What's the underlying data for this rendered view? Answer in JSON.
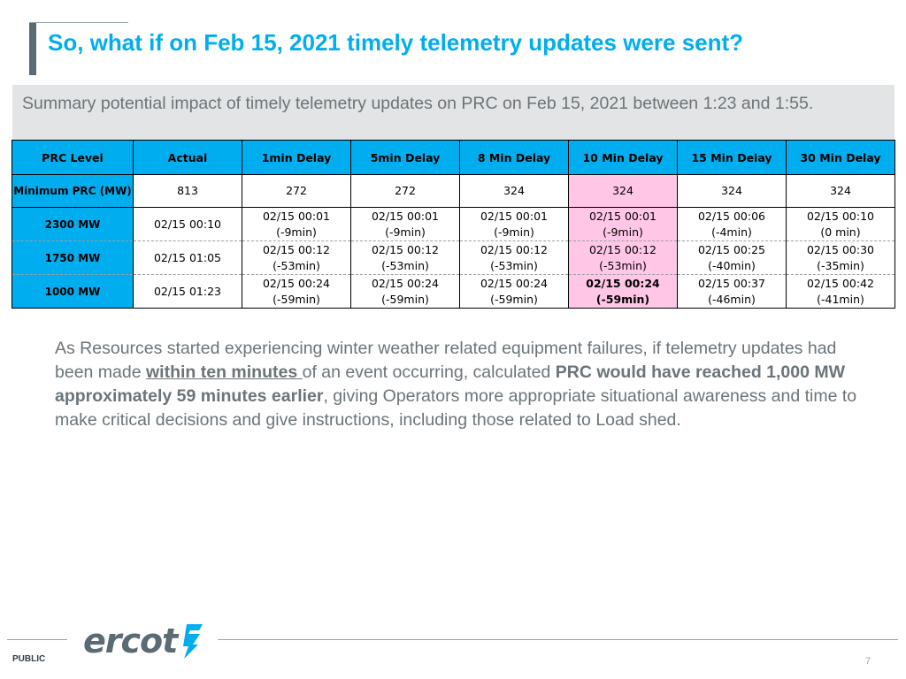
{
  "slide": {
    "title": "So, what if on Feb 15, 2021 timely telemetry updates were sent?",
    "summary": "Summary potential impact of timely telemetry updates on PRC on Feb 15, 2021 between 1:23 and 1:55."
  },
  "table": {
    "headers": [
      "PRC  Level",
      "Actual",
      "1min Delay",
      "5min Delay",
      "8 Min Delay",
      "10 Min Delay",
      "15 Min Delay",
      "30 Min Delay"
    ],
    "min_row": {
      "label": "Minimum PRC (MW)",
      "values": [
        "813",
        "272",
        "272",
        "324",
        "324",
        "324",
        "324"
      ]
    },
    "rows": [
      {
        "label": "2300 MW",
        "actual": "02/15 00:10",
        "cells": [
          {
            "time": "02/15 00:01",
            "delta": "(-9min)"
          },
          {
            "time": "02/15 00:01",
            "delta": "(-9min)"
          },
          {
            "time": "02/15 00:01",
            "delta": "(-9min)"
          },
          {
            "time": "02/15 00:01",
            "delta": "(-9min)"
          },
          {
            "time": "02/15 00:06",
            "delta": "(-4min)"
          },
          {
            "time": "02/15 00:10",
            "delta": "(0 min)"
          }
        ]
      },
      {
        "label": "1750 MW",
        "actual": "02/15 01:05",
        "cells": [
          {
            "time": "02/15 00:12",
            "delta": "(-53min)"
          },
          {
            "time": "02/15 00:12",
            "delta": "(-53min)"
          },
          {
            "time": "02/15 00:12",
            "delta": "(-53min)"
          },
          {
            "time": "02/15 00:12",
            "delta": "(-53min)"
          },
          {
            "time": "02/15 00:25",
            "delta": "(-40min)"
          },
          {
            "time": "02/15 00:30",
            "delta": "(-35min)"
          }
        ]
      },
      {
        "label": "1000 MW",
        "actual": "02/15 01:23",
        "cells": [
          {
            "time": "02/15 00:24",
            "delta": "(-59min)"
          },
          {
            "time": "02/15 00:24",
            "delta": "(-59min)"
          },
          {
            "time": "02/15 00:24",
            "delta": "(-59min)"
          },
          {
            "time": "02/15 00:24",
            "delta": "(-59min)"
          },
          {
            "time": "02/15 00:37",
            "delta": "(-46min)"
          },
          {
            "time": "02/15 00:42",
            "delta": "(-41min)"
          }
        ]
      }
    ],
    "highlight_color": "#ffc6e6"
  },
  "body": {
    "p1": "As Resources started experiencing winter weather related equipment failures, if telemetry updates had been made ",
    "p2": "within ten minutes ",
    "p3": "of an event occurring, calculated ",
    "p4": "PRC would have reached 1,000 MW approximately 59 minutes earlier",
    "p5": ", giving Operators more appropriate situational awareness and time to make critical decisions and give instructions, including those related to Load shed."
  },
  "footer": {
    "logo_text": "ercot",
    "classification": "PUBLIC",
    "page_number": "7"
  },
  "colors": {
    "accent": "#00aeef",
    "text_gray": "#6b7479",
    "summary_bg": "#e2e4e5"
  }
}
